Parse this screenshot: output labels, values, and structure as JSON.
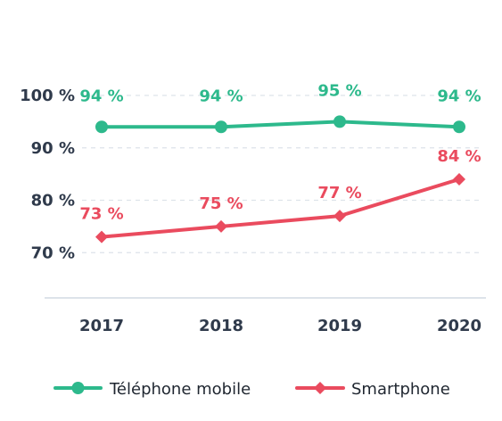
{
  "chart_data": {
    "type": "line",
    "x": [
      "2017",
      "2018",
      "2019",
      "2020"
    ],
    "ylim": [
      60,
      100
    ],
    "y_ticks": [
      {
        "value": 100,
        "label": "100 %"
      },
      {
        "value": 90,
        "label": "90 %"
      },
      {
        "value": 80,
        "label": "80 %"
      },
      {
        "value": 70,
        "label": "70 %"
      }
    ],
    "series": [
      {
        "name": "Téléphone mobile",
        "values": [
          94,
          94,
          95,
          94
        ],
        "data_labels": [
          "94 %",
          "94 %",
          "95 %",
          "94 %"
        ],
        "color": "#2db98c",
        "marker": "circle"
      },
      {
        "name": "Smartphone",
        "values": [
          73,
          75,
          77,
          84
        ],
        "data_labels": [
          "73 %",
          "75 %",
          "77 %",
          "84 %"
        ],
        "color": "#ea4b5e",
        "marker": "diamond"
      }
    ],
    "grid": "horizontal dashed",
    "legend": "bottom",
    "axis_color": "#2f3a4b",
    "grid_color": "#dde3ea"
  }
}
